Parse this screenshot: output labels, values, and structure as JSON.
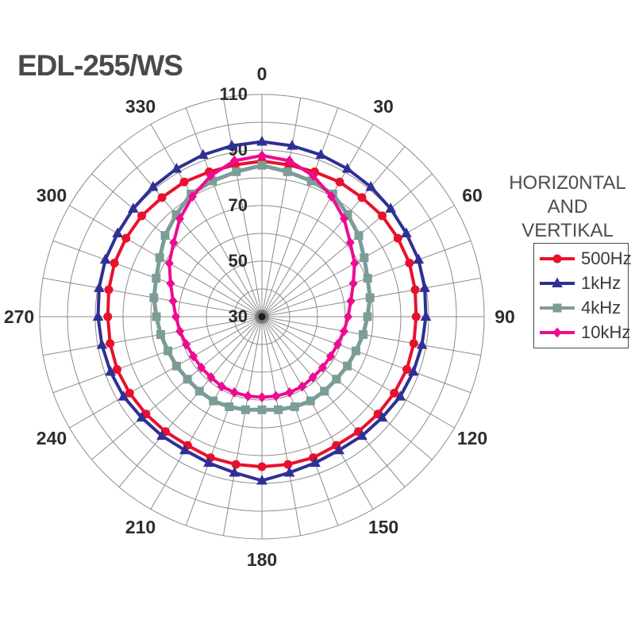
{
  "title": "EDL-255/WS",
  "legend": {
    "heading_lines": [
      "HORIZ0NTAL",
      "AND",
      "VERTIKAL"
    ],
    "items": [
      {
        "label": "500Hz",
        "color": "#e8112d",
        "marker": "circle"
      },
      {
        "label": "1kHz",
        "color": "#2e3094",
        "marker": "triangle"
      },
      {
        "label": "4kHz",
        "color": "#7c9c98",
        "marker": "square"
      },
      {
        "label": "10kHz",
        "color": "#ee0b90",
        "marker": "diamond"
      }
    ]
  },
  "chart_data": {
    "type": "line",
    "subtype": "polar-directivity",
    "angle_unit": "degrees",
    "angle_step": 10,
    "angle_tick_labels": [
      0,
      30,
      60,
      90,
      120,
      150,
      180,
      210,
      240,
      270,
      300,
      330
    ],
    "radial_axis": {
      "min": 30,
      "max": 110,
      "ring_step": 10,
      "tick_labels": [
        110,
        90,
        70,
        50,
        30
      ]
    },
    "grid": {
      "rings_on": true,
      "spokes_every_deg": 10,
      "grid_color": "#8c8c8c",
      "label_color": "#2d2d2f"
    },
    "angles": [
      0,
      10,
      20,
      30,
      40,
      50,
      60,
      70,
      80,
      90,
      100,
      110,
      120,
      130,
      140,
      150,
      160,
      170,
      180,
      190,
      200,
      210,
      220,
      230,
      240,
      250,
      260,
      270,
      280,
      290,
      300,
      310,
      320,
      330,
      340,
      350
    ],
    "series": [
      {
        "name": "500Hz",
        "color": "#e8112d",
        "marker": "circle",
        "line_width": 4,
        "values": [
          86,
          85.5,
          85.5,
          86,
          86,
          86.5,
          86.5,
          86.5,
          86,
          85.5,
          85.5,
          85.5,
          85,
          84.5,
          84,
          83.5,
          84,
          84,
          84,
          84,
          84,
          83.5,
          84,
          84.5,
          85,
          85.5,
          85.5,
          85.5,
          86,
          86.5,
          86.5,
          86.5,
          86,
          86,
          85.5,
          85.5
        ]
      },
      {
        "name": "1kHz",
        "color": "#2e3094",
        "marker": "triangle",
        "line_width": 4,
        "values": [
          93,
          92.5,
          92,
          91.5,
          91,
          90.5,
          90,
          90,
          89.5,
          89,
          88.5,
          88,
          87.5,
          86.5,
          86,
          85.5,
          86,
          87,
          89,
          87,
          86,
          85.5,
          86,
          86.5,
          87.5,
          88,
          88.5,
          89,
          89.5,
          90,
          90,
          90.5,
          91,
          91.5,
          92,
          92.5
        ]
      },
      {
        "name": "4kHz",
        "color": "#7c9c98",
        "marker": "square",
        "line_width": 5,
        "values": [
          84.5,
          83,
          82,
          81,
          78,
          75.5,
          72.5,
          70.5,
          69.5,
          68,
          67,
          66,
          65.5,
          65,
          65,
          65,
          64.5,
          64,
          63.5,
          64,
          64.5,
          65,
          65,
          65,
          65.5,
          66,
          67,
          68,
          69.5,
          70.5,
          72.5,
          75.5,
          78,
          81,
          82,
          83
        ]
      },
      {
        "name": "10kHz",
        "color": "#ee0b90",
        "marker": "diamond",
        "line_width": 4,
        "values": [
          88,
          87,
          84,
          80,
          76,
          71.5,
          68.5,
          65,
          62.5,
          61,
          60,
          59,
          58.5,
          58.5,
          58.5,
          59,
          59,
          59,
          59,
          59,
          59,
          59,
          58.5,
          58.5,
          58.5,
          59,
          60,
          61,
          62.5,
          65,
          68.5,
          71.5,
          76,
          80,
          84,
          87
        ]
      }
    ],
    "legend_position": "right",
    "title": "EDL-255/WS",
    "annotation": "HORIZ0NTAL AND VERTIKAL"
  }
}
